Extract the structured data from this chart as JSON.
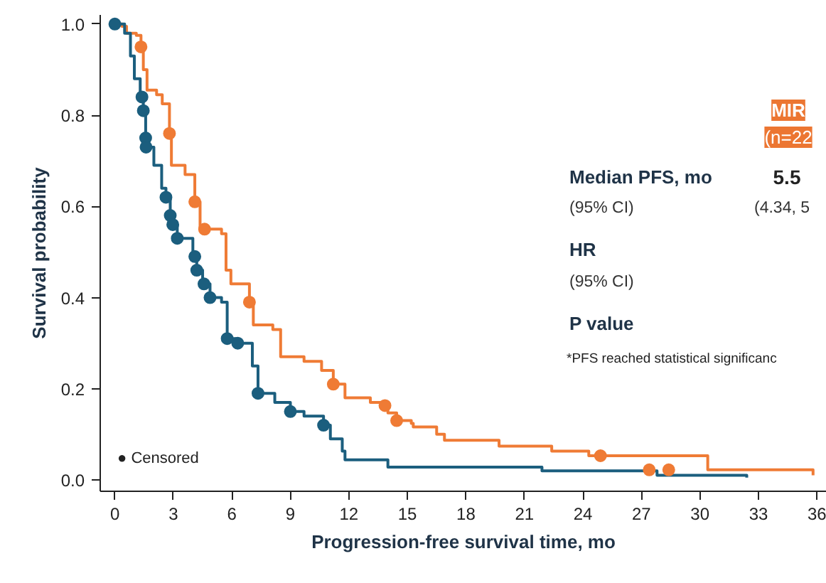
{
  "chart_data": {
    "type": "step",
    "xlabel": "Progression-free survival time, mo",
    "ylabel": "Survival probability",
    "xlim": [
      -0.75,
      36.5
    ],
    "ylim": [
      -0.025,
      1.02
    ],
    "xticks": [
      0,
      3,
      6,
      9,
      12,
      15,
      18,
      21,
      24,
      27,
      30,
      33,
      36
    ],
    "yticks": [
      {
        "value": 0,
        "label": "0.0"
      },
      0.2,
      0.4,
      0.6,
      0.8,
      {
        "value": 1,
        "label": "1.0"
      }
    ],
    "grid": false,
    "line_style": "solid",
    "series": [
      {
        "color": "#ef7b35",
        "x": [
          0,
          0.36,
          0.6,
          1.1,
          1.34,
          1.46,
          1.65,
          2.14,
          2.43,
          2.8,
          2.9,
          3.6,
          4.1,
          4.37,
          5.47,
          5.7,
          5.95,
          6.9,
          7.1,
          8.1,
          8.5,
          9.7,
          10.6,
          11.2,
          11.8,
          13.1,
          13.85,
          14.0,
          14.45,
          15.2,
          15.3,
          16.5,
          16.9,
          19.7,
          22.4,
          24.3,
          30.4,
          35.8
        ],
        "values": [
          1.0,
          0.995,
          0.98,
          0.975,
          0.95,
          0.9,
          0.855,
          0.845,
          0.825,
          0.76,
          0.69,
          0.67,
          0.61,
          0.55,
          0.54,
          0.46,
          0.43,
          0.39,
          0.34,
          0.33,
          0.27,
          0.26,
          0.24,
          0.21,
          0.18,
          0.17,
          0.163,
          0.147,
          0.13,
          0.124,
          0.116,
          0.1,
          0.087,
          0.074,
          0.063,
          0.053,
          0.022,
          0.01
        ]
      },
      {
        "color": "#1b5e7e",
        "x": [
          0,
          0.5,
          0.8,
          1.0,
          1.3,
          1.46,
          1.58,
          1.62,
          2.0,
          2.4,
          2.62,
          2.84,
          2.97,
          3.2,
          4.0,
          4.2,
          4.5,
          4.88,
          5.47,
          5.76,
          6.3,
          7.05,
          7.34,
          8.2,
          9.0,
          9.7,
          10.7,
          11.05,
          11.66,
          11.8,
          14.0,
          21.9,
          27.8,
          32.4
        ],
        "values": [
          1.0,
          0.98,
          0.93,
          0.88,
          0.84,
          0.81,
          0.75,
          0.73,
          0.69,
          0.64,
          0.62,
          0.58,
          0.56,
          0.53,
          0.49,
          0.46,
          0.43,
          0.4,
          0.39,
          0.31,
          0.3,
          0.25,
          0.19,
          0.17,
          0.15,
          0.14,
          0.12,
          0.09,
          0.063,
          0.044,
          0.028,
          0.02,
          0.01,
          0.005
        ]
      },
      {
        "type": "scatter",
        "marker": "circle",
        "color": "#ef7b35",
        "x": [
          1.34,
          2.8,
          4.1,
          4.6,
          6.9,
          11.2,
          13.85,
          14.45,
          24.9,
          27.4,
          28.4
        ],
        "values": [
          0.95,
          0.76,
          0.61,
          0.55,
          0.39,
          0.21,
          0.163,
          0.13,
          0.053,
          0.022,
          0.022
        ]
      },
      {
        "type": "scatter",
        "marker": "circle",
        "color": "#1b5e7e",
        "x": [
          0,
          1.39,
          1.46,
          1.58,
          1.6,
          2.62,
          2.84,
          2.97,
          3.2,
          4.1,
          4.2,
          4.57,
          4.88,
          5.76,
          6.3,
          7.34,
          9.0,
          10.7
        ],
        "values": [
          1.0,
          0.84,
          0.81,
          0.75,
          0.73,
          0.62,
          0.58,
          0.56,
          0.53,
          0.49,
          0.46,
          0.43,
          0.4,
          0.31,
          0.3,
          0.19,
          0.15,
          0.12
        ]
      }
    ],
    "annotations": [
      "● Censored",
      "MIR",
      "(n=22",
      "Median PFS, mo",
      "(95% CI)",
      "5.5",
      "(4.34, 5",
      "HR",
      "(95% CI)",
      "P value",
      "*PFS reached statistical significanc"
    ]
  }
}
